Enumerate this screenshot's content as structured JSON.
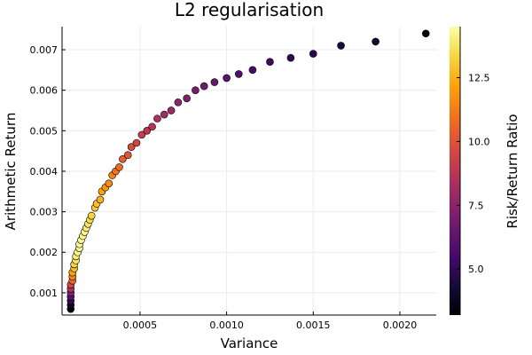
{
  "chart_data": {
    "type": "scatter",
    "title": "L2 regularisation",
    "xlabel": "Variance",
    "ylabel": "Arithmetic Return",
    "colorbar_label": "Risk/Return Ratio",
    "colormap": "inferno",
    "xlim": [
      5e-05,
      0.00221
    ],
    "ylim": [
      0.00045,
      0.00757
    ],
    "clim": [
      3.2,
      14.5
    ],
    "grid": true,
    "x_ticks": [
      {
        "value": 0.0005,
        "label": "0.0005"
      },
      {
        "value": 0.001,
        "label": "0.0010"
      },
      {
        "value": 0.0015,
        "label": "0.0015"
      },
      {
        "value": 0.002,
        "label": "0.0020"
      }
    ],
    "y_ticks": [
      {
        "value": 0.001,
        "label": "0.001"
      },
      {
        "value": 0.002,
        "label": "0.002"
      },
      {
        "value": 0.003,
        "label": "0.003"
      },
      {
        "value": 0.004,
        "label": "0.004"
      },
      {
        "value": 0.005,
        "label": "0.005"
      },
      {
        "value": 0.006,
        "label": "0.006"
      },
      {
        "value": 0.007,
        "label": "0.007"
      }
    ],
    "c_ticks": [
      {
        "value": 5.0,
        "label": "5.0"
      },
      {
        "value": 7.5,
        "label": "7.5"
      },
      {
        "value": 10.0,
        "label": "10.0"
      },
      {
        "value": 12.5,
        "label": "12.5"
      }
    ],
    "points": [
      {
        "x": 0.0001,
        "y": 0.0006,
        "c": 3.3
      },
      {
        "x": 0.0001,
        "y": 0.0007,
        "c": 4.0
      },
      {
        "x": 0.0001,
        "y": 0.0008,
        "c": 5.0
      },
      {
        "x": 0.0001,
        "y": 0.0009,
        "c": 6.0
      },
      {
        "x": 0.0001,
        "y": 0.001,
        "c": 7.2
      },
      {
        "x": 0.0001,
        "y": 0.0011,
        "c": 8.4
      },
      {
        "x": 0.0001,
        "y": 0.0012,
        "c": 9.6
      },
      {
        "x": 0.00011,
        "y": 0.0013,
        "c": 10.6
      },
      {
        "x": 0.00011,
        "y": 0.0014,
        "c": 11.5
      },
      {
        "x": 0.00011,
        "y": 0.0015,
        "c": 12.2
      },
      {
        "x": 0.00012,
        "y": 0.0016,
        "c": 12.8
      },
      {
        "x": 0.00012,
        "y": 0.0017,
        "c": 13.3
      },
      {
        "x": 0.00013,
        "y": 0.0018,
        "c": 13.7
      },
      {
        "x": 0.00013,
        "y": 0.0019,
        "c": 14.0
      },
      {
        "x": 0.00014,
        "y": 0.002,
        "c": 14.2
      },
      {
        "x": 0.00015,
        "y": 0.0021,
        "c": 14.3
      },
      {
        "x": 0.00015,
        "y": 0.0022,
        "c": 14.4
      },
      {
        "x": 0.00016,
        "y": 0.0023,
        "c": 14.4
      },
      {
        "x": 0.00017,
        "y": 0.0024,
        "c": 14.3
      },
      {
        "x": 0.00018,
        "y": 0.0025,
        "c": 14.2
      },
      {
        "x": 0.00019,
        "y": 0.0026,
        "c": 14.0
      },
      {
        "x": 0.0002,
        "y": 0.0027,
        "c": 13.8
      },
      {
        "x": 0.00021,
        "y": 0.0028,
        "c": 13.5
      },
      {
        "x": 0.00022,
        "y": 0.0029,
        "c": 13.3
      },
      {
        "x": 0.00024,
        "y": 0.0031,
        "c": 13.0
      },
      {
        "x": 0.00025,
        "y": 0.0032,
        "c": 12.8
      },
      {
        "x": 0.00027,
        "y": 0.0033,
        "c": 12.5
      },
      {
        "x": 0.00028,
        "y": 0.0035,
        "c": 12.2
      },
      {
        "x": 0.0003,
        "y": 0.0036,
        "c": 11.9
      },
      {
        "x": 0.00032,
        "y": 0.0037,
        "c": 11.6
      },
      {
        "x": 0.00034,
        "y": 0.0039,
        "c": 11.3
      },
      {
        "x": 0.00036,
        "y": 0.004,
        "c": 11.0
      },
      {
        "x": 0.00038,
        "y": 0.0041,
        "c": 10.7
      },
      {
        "x": 0.0004,
        "y": 0.0043,
        "c": 10.4
      },
      {
        "x": 0.00043,
        "y": 0.0044,
        "c": 10.1
      },
      {
        "x": 0.00045,
        "y": 0.0046,
        "c": 9.8
      },
      {
        "x": 0.00048,
        "y": 0.0047,
        "c": 9.5
      },
      {
        "x": 0.00051,
        "y": 0.0049,
        "c": 9.2
      },
      {
        "x": 0.00054,
        "y": 0.005,
        "c": 8.9
      },
      {
        "x": 0.00057,
        "y": 0.0051,
        "c": 8.7
      },
      {
        "x": 0.0006,
        "y": 0.0053,
        "c": 8.4
      },
      {
        "x": 0.00064,
        "y": 0.0054,
        "c": 8.1
      },
      {
        "x": 0.00068,
        "y": 0.0055,
        "c": 7.9
      },
      {
        "x": 0.00072,
        "y": 0.0057,
        "c": 7.6
      },
      {
        "x": 0.00077,
        "y": 0.0058,
        "c": 7.3
      },
      {
        "x": 0.00082,
        "y": 0.006,
        "c": 7.0
      },
      {
        "x": 0.00087,
        "y": 0.0061,
        "c": 6.8
      },
      {
        "x": 0.00093,
        "y": 0.0062,
        "c": 6.5
      },
      {
        "x": 0.001,
        "y": 0.0063,
        "c": 6.2
      },
      {
        "x": 0.00107,
        "y": 0.0064,
        "c": 5.9
      },
      {
        "x": 0.00115,
        "y": 0.0065,
        "c": 5.6
      },
      {
        "x": 0.00125,
        "y": 0.0067,
        "c": 5.3
      },
      {
        "x": 0.00137,
        "y": 0.0068,
        "c": 5.0
      },
      {
        "x": 0.0015,
        "y": 0.0069,
        "c": 4.7
      },
      {
        "x": 0.00166,
        "y": 0.0071,
        "c": 4.4
      },
      {
        "x": 0.00186,
        "y": 0.0072,
        "c": 4.1
      },
      {
        "x": 0.00215,
        "y": 0.0074,
        "c": 3.3
      }
    ]
  }
}
